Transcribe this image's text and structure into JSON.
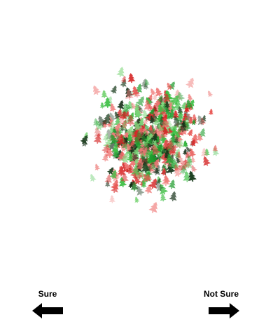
{
  "stimulus": {
    "description_icon": "christmas-tree-icon",
    "colors": [
      "#d62828",
      "#e8524f",
      "#f07b79",
      "#1f9d2e",
      "#3fc046",
      "#7ed67a",
      "#1b3d1e",
      "#0e2a12"
    ]
  },
  "choices": {
    "sure": {
      "label": "Sure",
      "icon": "arrow-left-icon",
      "color": "#000000"
    },
    "not_sure": {
      "label": "Not Sure",
      "icon": "arrow-right-icon",
      "color": "#000000"
    }
  }
}
